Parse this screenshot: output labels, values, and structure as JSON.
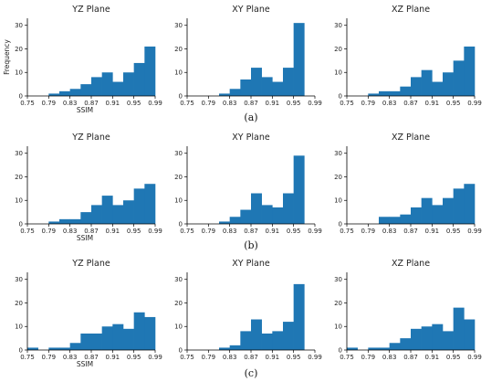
{
  "chart_data": {
    "type": "bar",
    "figure": "histogram grid",
    "x_tick_labels": [
      "0.75",
      "0.79",
      "0.83",
      "0.87",
      "0.91",
      "0.95",
      "0.99"
    ],
    "xlim": [
      0.75,
      0.99
    ],
    "ylim": [
      0,
      33
    ],
    "y_ticks": [
      0,
      10,
      20,
      30
    ],
    "xlabel": "SSIM",
    "ylabel": "Frequency",
    "bin_edges": [
      0.75,
      0.77,
      0.79,
      0.81,
      0.83,
      0.85,
      0.87,
      0.89,
      0.91,
      0.93,
      0.95,
      0.97,
      0.99
    ],
    "rows": [
      {
        "caption": "(a)",
        "panels": [
          {
            "title": "YZ Plane",
            "values": [
              0,
              0,
              1,
              2,
              3,
              5,
              8,
              10,
              6,
              10,
              14,
              21
            ]
          },
          {
            "title": "XY Plane",
            "values": [
              0,
              0,
              0,
              1,
              3,
              7,
              12,
              8,
              6,
              12,
              31,
              0
            ]
          },
          {
            "title": "XZ Plane",
            "values": [
              0,
              0,
              1,
              2,
              2,
              4,
              8,
              11,
              6,
              10,
              15,
              21
            ]
          }
        ]
      },
      {
        "caption": "(b)",
        "panels": [
          {
            "title": "YZ Plane",
            "values": [
              0,
              0,
              1,
              2,
              2,
              5,
              8,
              12,
              8,
              10,
              15,
              17
            ]
          },
          {
            "title": "XY Plane",
            "values": [
              0,
              0,
              0,
              1,
              3,
              6,
              13,
              8,
              7,
              13,
              29,
              0
            ]
          },
          {
            "title": "XZ Plane",
            "values": [
              0,
              0,
              0,
              3,
              3,
              4,
              7,
              11,
              8,
              11,
              15,
              17
            ]
          }
        ]
      },
      {
        "caption": "(c)",
        "panels": [
          {
            "title": "YZ Plane",
            "values": [
              1,
              0,
              1,
              1,
              3,
              7,
              7,
              10,
              11,
              9,
              16,
              14
            ]
          },
          {
            "title": "XY Plane",
            "values": [
              0,
              0,
              0,
              1,
              2,
              8,
              13,
              7,
              8,
              12,
              28,
              0
            ]
          },
          {
            "title": "XZ Plane",
            "values": [
              1,
              0,
              1,
              1,
              3,
              5,
              9,
              10,
              11,
              8,
              18,
              13
            ]
          }
        ]
      }
    ]
  }
}
